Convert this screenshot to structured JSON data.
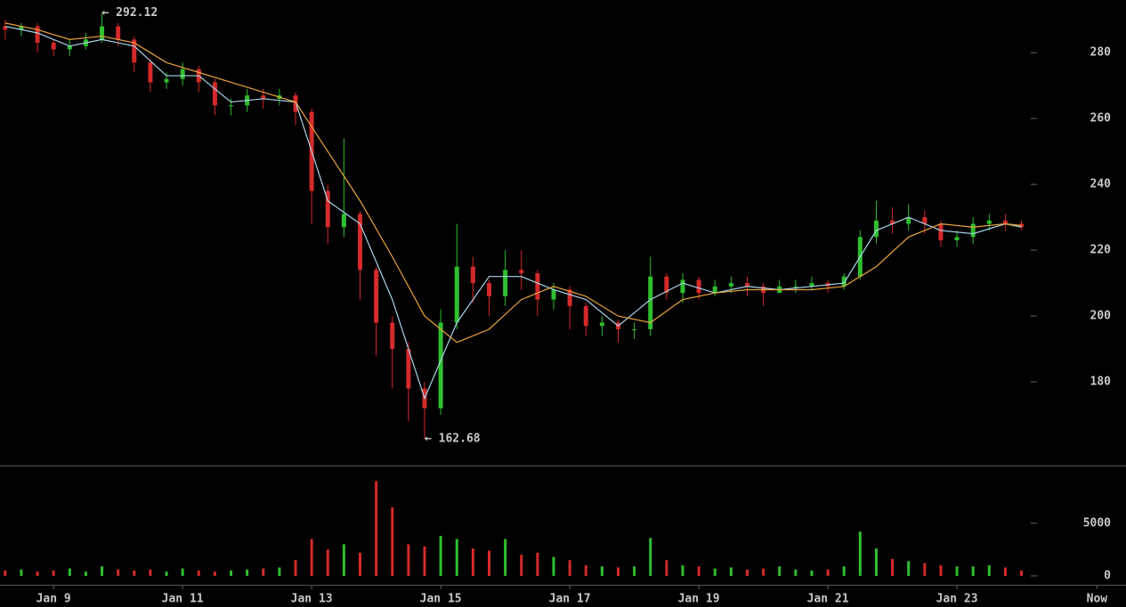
{
  "chart_data": [
    {
      "type": "candlestick",
      "xlim": [
        -0.83,
        16.62
      ],
      "ylim": [
        154.6,
        296
      ],
      "yticks": [
        180,
        200,
        220,
        240,
        260,
        280
      ],
      "xticks": [
        {
          "value": 0,
          "label": "Jan 9"
        },
        {
          "value": 2,
          "label": "Jan 11"
        },
        {
          "value": 4,
          "label": "Jan 13"
        },
        {
          "value": 6,
          "label": "Jan 15"
        },
        {
          "value": 8,
          "label": "Jan 17"
        },
        {
          "value": 10,
          "label": "Jan 19"
        },
        {
          "value": 12,
          "label": "Jan 21"
        },
        {
          "value": 14,
          "label": "Jan 23"
        },
        {
          "value": 16.17,
          "label": "Now"
        }
      ],
      "up_color": "#2fbf2f",
      "down_color": "#d42a2a",
      "x": [
        -0.75,
        -0.5,
        -0.25,
        0,
        0.25,
        0.5,
        0.75,
        1,
        1.25,
        1.5,
        1.75,
        2,
        2.25,
        2.5,
        2.75,
        3,
        3.25,
        3.5,
        3.75,
        4,
        4.25,
        4.5,
        4.75,
        5,
        5.25,
        5.5,
        5.75,
        6,
        6.25,
        6.5,
        6.75,
        7,
        7.25,
        7.5,
        7.75,
        8,
        8.25,
        8.5,
        8.75,
        9,
        9.25,
        9.5,
        9.75,
        10,
        10.25,
        10.5,
        10.75,
        11,
        11.25,
        11.5,
        11.75,
        12,
        12.25,
        12.5,
        12.75,
        13,
        13.25,
        13.5,
        13.75,
        14,
        14.25,
        14.5,
        14.75,
        15
      ],
      "open": [
        288,
        287,
        288,
        283,
        281,
        282,
        284,
        288,
        284,
        277,
        271,
        272,
        275,
        271,
        264,
        264,
        267,
        266,
        267,
        262,
        238,
        227,
        231,
        214,
        198,
        190,
        178,
        172,
        198,
        215,
        210,
        206,
        214,
        213,
        205,
        208,
        203,
        197,
        198,
        196,
        196,
        212,
        207,
        211,
        207,
        209,
        210,
        209,
        207,
        209,
        209,
        210,
        209,
        212,
        224,
        229,
        228,
        230,
        228,
        223,
        224,
        228,
        229,
        228
      ],
      "high": [
        290,
        289,
        289,
        284,
        284,
        286,
        292.12,
        289,
        285,
        278,
        274,
        277,
        276,
        272,
        266,
        269,
        269,
        269,
        268,
        263,
        240,
        254,
        232,
        215,
        200,
        192,
        180,
        202,
        228,
        218,
        211,
        220,
        220,
        214,
        210,
        209,
        204,
        200,
        199,
        198,
        218,
        213,
        213,
        212,
        211,
        212,
        212,
        210,
        211,
        211,
        212,
        211,
        213,
        226,
        235,
        233,
        234,
        232,
        229,
        226,
        230,
        231,
        231,
        229
      ],
      "low": [
        284,
        285,
        280,
        279,
        279,
        281,
        283,
        282,
        274,
        268,
        269,
        270,
        268,
        261,
        261,
        262,
        263,
        264,
        258,
        228,
        222,
        224,
        205,
        188,
        178,
        168,
        162.68,
        170,
        196,
        204,
        200,
        203,
        208,
        200,
        202,
        196,
        194,
        194,
        192,
        193,
        194,
        205,
        204,
        205,
        206,
        207,
        206,
        203,
        207,
        207,
        208,
        207,
        208,
        211,
        222,
        225,
        226,
        225,
        221,
        221,
        222,
        226,
        226,
        226
      ],
      "close": [
        287,
        288,
        283,
        281,
        282,
        284,
        288,
        284,
        277,
        271,
        272,
        275,
        271,
        264,
        264,
        267,
        266,
        267,
        262,
        238,
        227,
        231,
        214,
        198,
        190,
        178,
        172,
        198,
        215,
        210,
        206,
        214,
        213,
        205,
        208,
        203,
        197,
        198,
        196,
        196,
        212,
        207,
        211,
        207,
        209,
        210,
        209,
        207,
        209,
        209,
        210,
        209,
        212,
        224,
        229,
        228,
        230,
        228,
        223,
        224,
        228,
        229,
        228,
        227
      ],
      "lines": [
        {
          "color": "#a9d4ea",
          "x": [
            -0.75,
            -0.25,
            0.25,
            0.75,
            1.25,
            1.75,
            2.25,
            2.75,
            3.25,
            3.75,
            4.25,
            4.75,
            5.25,
            5.75,
            6.25,
            6.75,
            7.25,
            7.75,
            8.25,
            8.75,
            9.25,
            9.75,
            10.25,
            10.75,
            11.25,
            11.75,
            12.25,
            12.75,
            13.25,
            13.75,
            14.25,
            14.75,
            15
          ],
          "values": [
            288,
            286,
            282,
            284,
            282,
            273,
            273,
            265,
            266,
            265,
            235,
            228,
            205,
            175,
            198,
            212,
            212,
            208,
            205,
            197,
            205,
            210,
            207,
            209,
            208,
            209,
            210,
            226,
            230,
            226,
            225,
            228,
            227
          ]
        },
        {
          "color": "#e9a43c",
          "x": [
            -0.75,
            -0.25,
            0.25,
            0.75,
            1.25,
            1.75,
            2.25,
            2.75,
            3.25,
            3.75,
            4.25,
            4.75,
            5.25,
            5.75,
            6.25,
            6.75,
            7.25,
            7.75,
            8.25,
            8.75,
            9.25,
            9.75,
            10.25,
            10.75,
            11.25,
            11.75,
            12.25,
            12.75,
            13.25,
            13.75,
            14.25,
            14.75,
            15
          ],
          "values": [
            289,
            287,
            284,
            285,
            283,
            277,
            274,
            271,
            268,
            265,
            250,
            235,
            218,
            200,
            192,
            196,
            205,
            209,
            206,
            200,
            198,
            205,
            207,
            208,
            208,
            208,
            209,
            215,
            224,
            228,
            227,
            228,
            227.5
          ]
        }
      ],
      "annotations": [
        {
          "x": 0.75,
          "y": 292.12,
          "label": "← 292.12"
        },
        {
          "x": 5.75,
          "y": 162.68,
          "label": "← 162.68"
        }
      ]
    },
    {
      "type": "bar",
      "ylim": [
        0,
        10400
      ],
      "yticks": [
        0,
        5000
      ],
      "values": [
        500,
        600,
        400,
        500,
        700,
        400,
        900,
        600,
        500,
        600,
        400,
        700,
        500,
        400,
        500,
        600,
        700,
        800,
        1500,
        3500,
        2500,
        3000,
        2200,
        9000,
        6500,
        3000,
        2800,
        3800,
        3500,
        2600,
        2400,
        3500,
        2000,
        2200,
        1800,
        1500,
        1000,
        900,
        800,
        900,
        3600,
        1500,
        1000,
        900,
        700,
        800,
        600,
        700,
        900,
        600,
        500,
        600,
        900,
        4200,
        2600,
        1600,
        1400,
        1200,
        1000,
        900,
        900,
        1000,
        800,
        500
      ]
    }
  ]
}
